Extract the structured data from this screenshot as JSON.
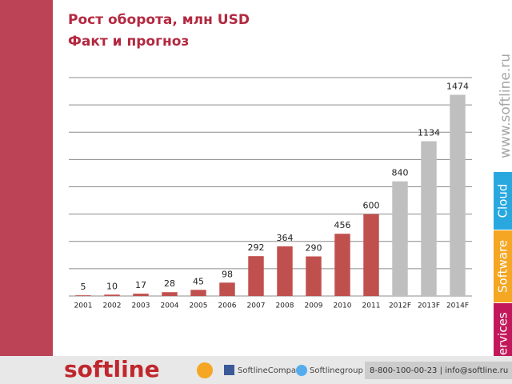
{
  "chart_data": {
    "type": "bar",
    "title": "Рост оборота, млн USD",
    "subtitle": "Факт и прогноз",
    "categories": [
      "2001",
      "2002",
      "2003",
      "2004",
      "2005",
      "2006",
      "2007",
      "2008",
      "2009",
      "2010",
      "2011",
      "2012F",
      "2013F",
      "2014F"
    ],
    "values": [
      5,
      10,
      17,
      28,
      45,
      98,
      292,
      364,
      290,
      456,
      600,
      840,
      1134,
      1474
    ],
    "bar_colors": [
      "#c0504d",
      "#c0504d",
      "#c0504d",
      "#c0504d",
      "#c0504d",
      "#c0504d",
      "#c0504d",
      "#c0504d",
      "#c0504d",
      "#c0504d",
      "#c0504d",
      "#bfbfbf",
      "#bfbfbf",
      "#bfbfbf"
    ],
    "ylim": [
      0,
      1600
    ],
    "yticks": [
      0,
      200,
      400,
      600,
      800,
      1000,
      1200,
      1400,
      1600
    ],
    "grid": true
  },
  "sidebar": {
    "site": "www.softline.ru",
    "tabs": [
      "Cloud",
      "Software",
      "Services"
    ]
  },
  "footer": {
    "logo": "softline",
    "facebook": "SoftlineCompany",
    "twitter": "Softlinegroup",
    "contacts": "8-800-100-00-23 | info@softline.ru"
  }
}
